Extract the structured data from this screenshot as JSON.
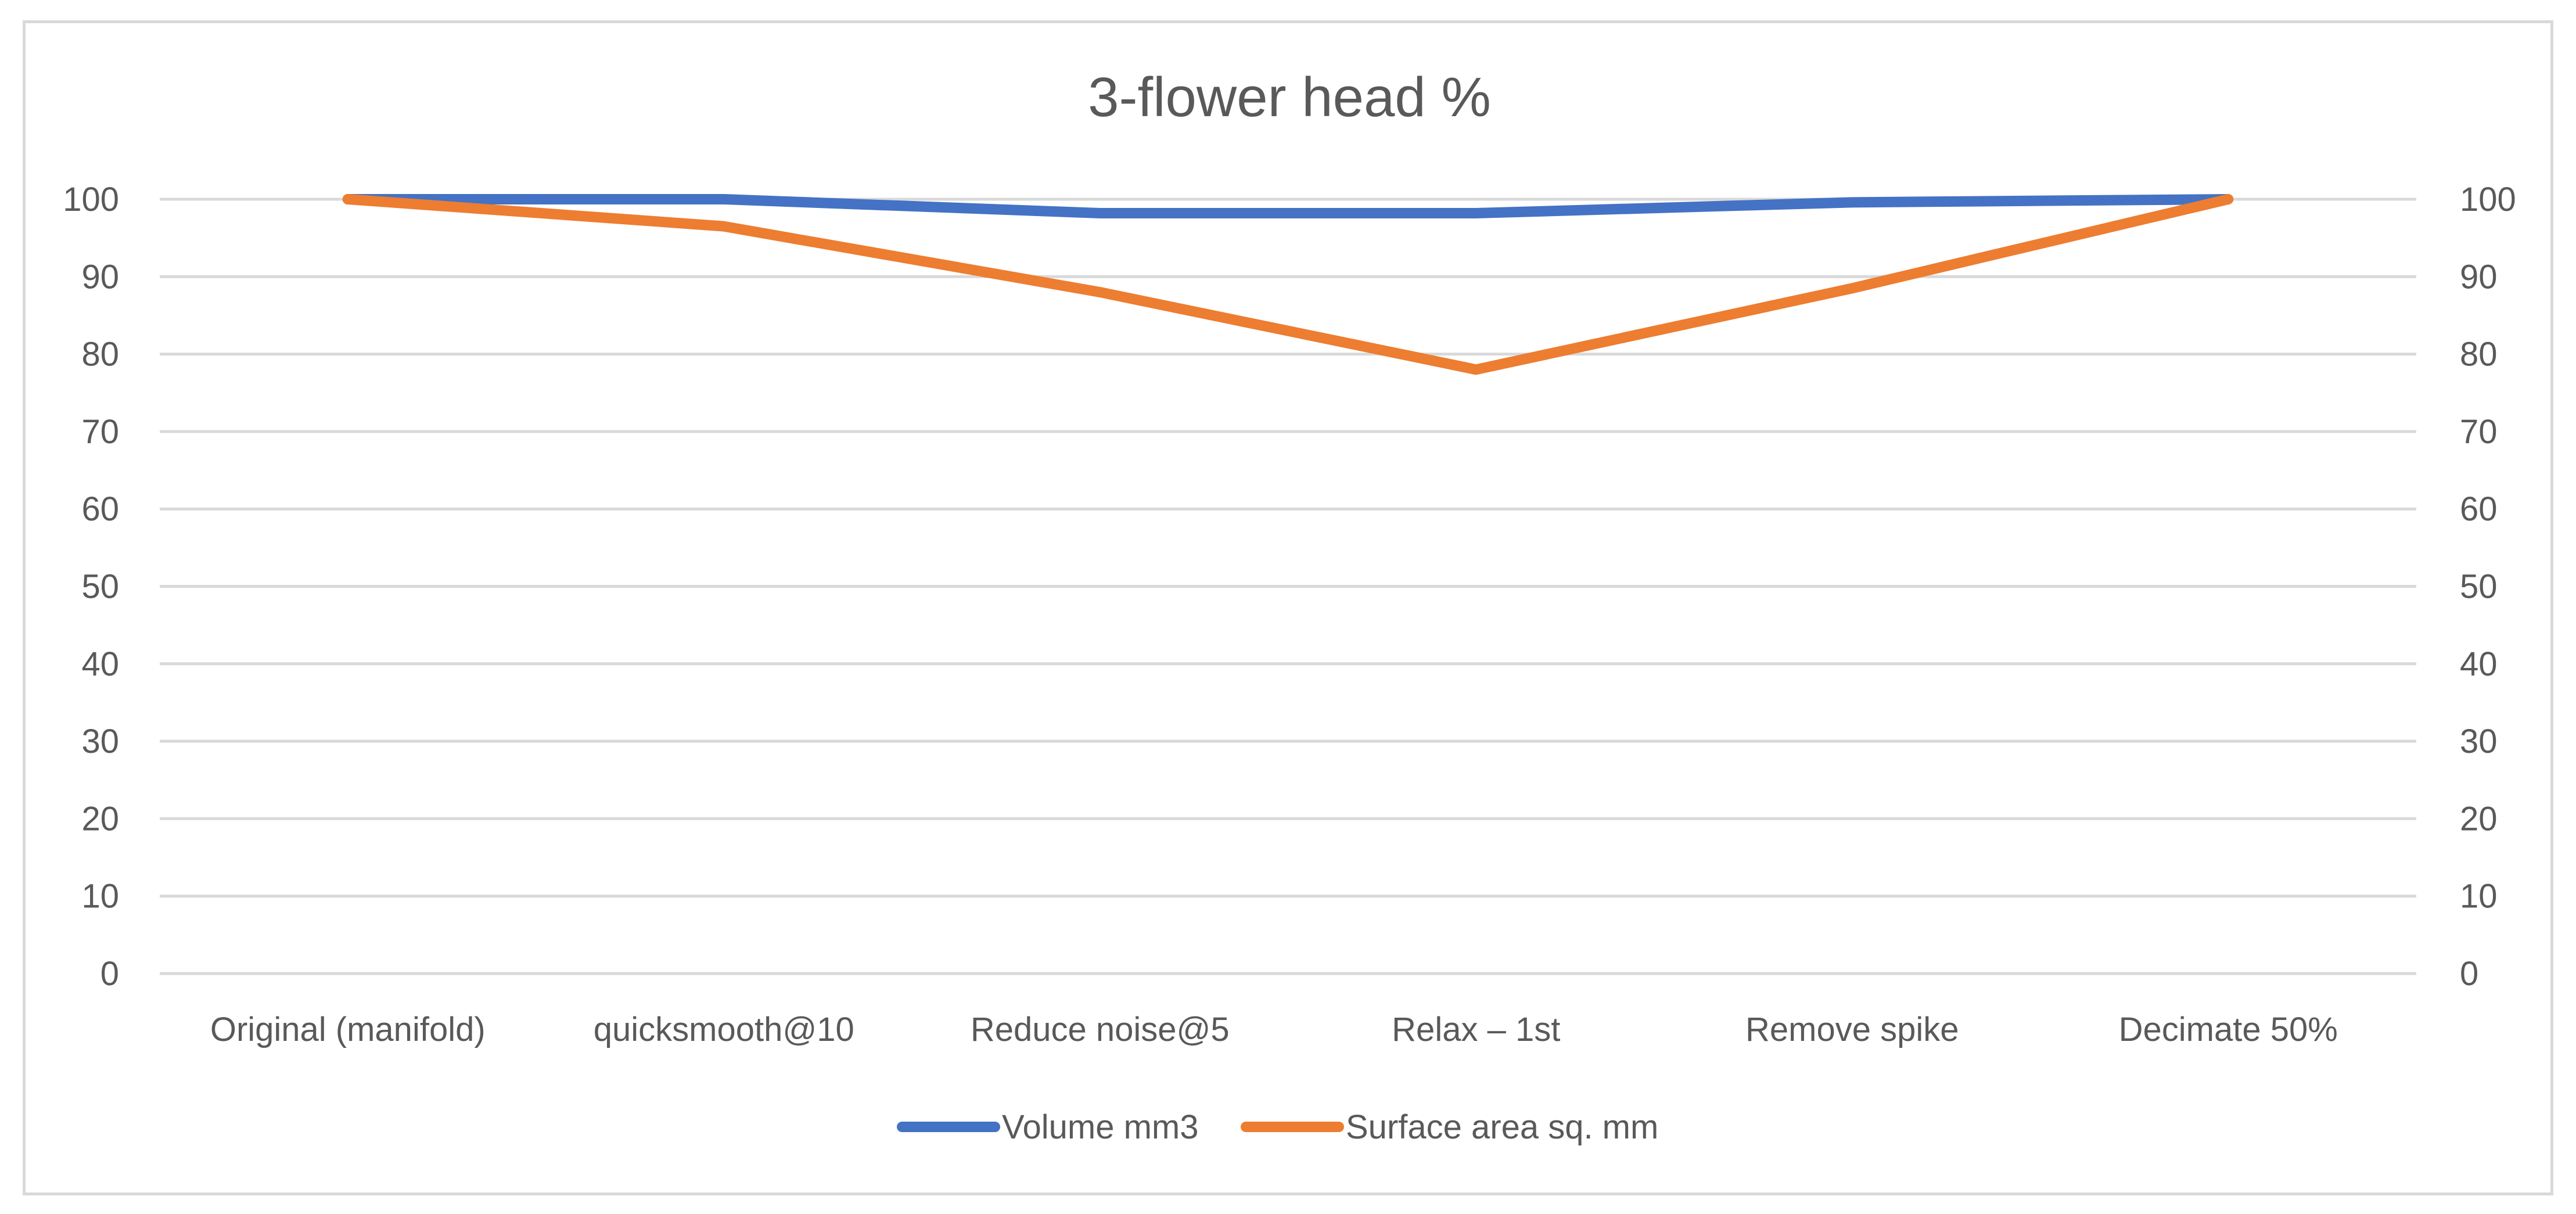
{
  "chart_data": {
    "type": "line",
    "title": "3-flower head %",
    "categories": [
      "Original (manifold)",
      "quicksmooth@10",
      "Reduce noise@5",
      "Relax – 1st",
      "Remove spike",
      "Decimate 50%"
    ],
    "series": [
      {
        "name": "Volume mm3",
        "color": "#4472c4",
        "values": [
          100,
          100,
          98.2,
          98.2,
          99.6,
          100
        ]
      },
      {
        "name": "Surface area sq. mm",
        "color": "#ed7d31",
        "values": [
          100,
          96.5,
          88,
          78,
          88.5,
          100
        ]
      }
    ],
    "ylim": [
      0,
      100
    ],
    "yticks": [
      0,
      10,
      20,
      30,
      40,
      50,
      60,
      70,
      80,
      90,
      100
    ],
    "secondary_ylim": [
      0,
      100
    ],
    "secondary_yticks": [
      0,
      10,
      20,
      30,
      40,
      50,
      60,
      70,
      80,
      90,
      100
    ],
    "grid": true,
    "legend_position": "bottom",
    "xlabel": "",
    "ylabel": ""
  }
}
